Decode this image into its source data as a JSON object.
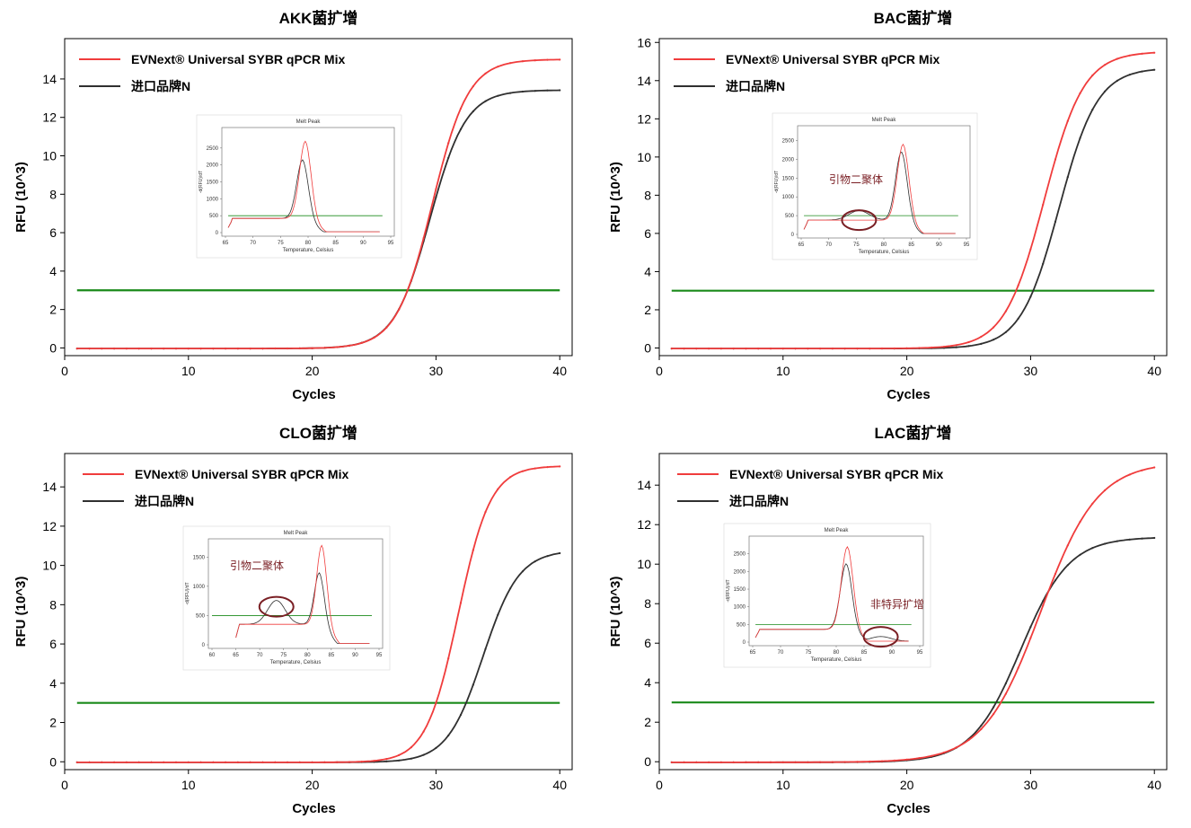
{
  "colors": {
    "evnext": "#f03c3c",
    "imported": "#303030",
    "threshold": "#1a8a1a",
    "annotation": "#7a1f24",
    "axis": "#000000"
  },
  "chart_data": [
    {
      "type": "line",
      "title": "AKK菌扩增",
      "xlabel": "Cycles",
      "ylabel": "RFU (10^3)",
      "xlim": [
        0,
        41
      ],
      "ylim": [
        -0.4,
        16.1
      ],
      "xticks": [
        0,
        10,
        20,
        30,
        40
      ],
      "yticks": [
        0,
        2,
        4,
        6,
        8,
        10,
        12,
        14
      ],
      "threshold": 3.0,
      "legend": [
        "EVNext® Universal SYBR qPCR Mix",
        "进口品牌N"
      ],
      "series": [
        {
          "name": "EVNext® Universal SYBR qPCR Mix",
          "plateau": 15.05,
          "midpoint": 29.7,
          "slope": 1.45,
          "baseline": 0.0
        },
        {
          "name": "进口品牌N",
          "plateau": 13.45,
          "midpoint": 29.5,
          "slope": 1.45,
          "baseline": 0.0
        }
      ],
      "inset": {
        "title": "Melt Peak",
        "xlabel": "Temperature, Celsius",
        "ylabel": "-d(RFU)/dT",
        "xticks": [
          65,
          70,
          75,
          80,
          85,
          90,
          95
        ],
        "yticks": [
          0,
          500,
          1000,
          1500,
          2000,
          2500
        ],
        "ylim": [
          0,
          3000
        ],
        "threshold": 500,
        "peaks": [
          {
            "series": "EVNext",
            "temp": 79.5,
            "height": 2700,
            "base": 420,
            "dimer_temp": null,
            "dimer_height": 0
          },
          {
            "series": "Imported",
            "temp": 79.0,
            "height": 2150,
            "base": 420,
            "dimer_temp": null,
            "dimer_height": 0
          }
        ],
        "annotation": null
      }
    },
    {
      "type": "line",
      "title": "BAC菌扩增",
      "xlabel": "Cycles",
      "ylabel": "RFU (10^3)",
      "xlim": [
        0,
        41
      ],
      "ylim": [
        -0.4,
        16.2
      ],
      "xticks": [
        0,
        10,
        20,
        30,
        40
      ],
      "yticks": [
        0,
        2,
        4,
        6,
        8,
        10,
        12,
        14,
        16
      ],
      "threshold": 3.0,
      "legend": [
        "EVNext® Universal SYBR qPCR Mix",
        "进口品牌N"
      ],
      "series": [
        {
          "name": "EVNext® Universal SYBR qPCR Mix",
          "plateau": 15.55,
          "midpoint": 31.1,
          "slope": 1.6,
          "baseline": 0.0
        },
        {
          "name": "进口品牌N",
          "plateau": 14.7,
          "midpoint": 32.3,
          "slope": 1.55,
          "baseline": 0.0
        }
      ],
      "inset": {
        "title": "Melt Peak",
        "xlabel": "Temperature, Celsius",
        "ylabel": "-d(RFU)/dT",
        "xticks": [
          65,
          70,
          75,
          80,
          85,
          90,
          95
        ],
        "yticks": [
          0,
          500,
          1000,
          1500,
          2000,
          2500
        ],
        "ylim": [
          0,
          2800
        ],
        "threshold": 500,
        "peaks": [
          {
            "series": "EVNext",
            "temp": 83.5,
            "height": 2400,
            "base": 380,
            "dimer_temp": null,
            "dimer_height": 0
          },
          {
            "series": "Imported",
            "temp": 83.2,
            "height": 2200,
            "base": 380,
            "dimer_temp": 75.5,
            "dimer_height": 420
          }
        ],
        "annotation": {
          "text": "引物二聚体",
          "circle_temp": 75.5,
          "circle_value": 380
        }
      }
    },
    {
      "type": "line",
      "title": "CLO菌扩增",
      "xlabel": "Cycles",
      "ylabel": "RFU (10^3)",
      "xlim": [
        0,
        41
      ],
      "ylim": [
        -0.4,
        15.7
      ],
      "xticks": [
        0,
        10,
        20,
        30,
        40
      ],
      "yticks": [
        0,
        2,
        4,
        6,
        8,
        10,
        12,
        14
      ],
      "threshold": 3.0,
      "legend": [
        "EVNext® Universal SYBR qPCR Mix",
        "进口品牌N"
      ],
      "series": [
        {
          "name": "EVNext® Universal SYBR qPCR Mix",
          "plateau": 15.1,
          "midpoint": 31.8,
          "slope": 1.3,
          "baseline": 0.0
        },
        {
          "name": "进口品牌N",
          "plateau": 10.8,
          "midpoint": 33.8,
          "slope": 1.45,
          "baseline": 0.0
        }
      ],
      "inset": {
        "title": "Melt Peak",
        "xlabel": "Temperature, Celsius",
        "ylabel": "-d(RFU)/dT",
        "xticks": [
          60,
          65,
          70,
          75,
          80,
          85,
          90,
          95
        ],
        "yticks": [
          0,
          500,
          1000,
          1500
        ],
        "ylim": [
          0,
          1750
        ],
        "threshold": 500,
        "peaks": [
          {
            "series": "EVNext",
            "temp": 83.0,
            "height": 1700,
            "base": 350,
            "dimer_temp": null,
            "dimer_height": 0
          },
          {
            "series": "Imported",
            "temp": 82.5,
            "height": 1230,
            "base": 350,
            "dimer_temp": 73.5,
            "dimer_height": 680
          }
        ],
        "annotation": {
          "text": "引物二聚体",
          "circle_temp": 73.5,
          "circle_value": 650
        }
      }
    },
    {
      "type": "line",
      "title": "LAC菌扩增",
      "xlabel": "Cycles",
      "ylabel": "RFU (10^3)",
      "xlim": [
        0,
        41
      ],
      "ylim": [
        -0.4,
        15.6
      ],
      "xticks": [
        0,
        10,
        20,
        30,
        40
      ],
      "yticks": [
        0,
        2,
        4,
        6,
        8,
        10,
        12,
        14
      ],
      "threshold": 3.0,
      "legend": [
        "EVNext® Universal SYBR qPCR Mix",
        "进口品牌N"
      ],
      "series": [
        {
          "name": "EVNext® Universal SYBR qPCR Mix",
          "plateau": 15.2,
          "midpoint": 30.8,
          "slope": 2.3,
          "baseline": 0.0
        },
        {
          "name": "进口品牌N",
          "plateau": 11.4,
          "midpoint": 29.2,
          "slope": 1.95,
          "baseline": 0.0
        }
      ],
      "inset": {
        "title": "Melt Peak",
        "xlabel": "Temperature, Celsius",
        "ylabel": "-d(RFU)/dT",
        "xticks": [
          65,
          70,
          75,
          80,
          85,
          90,
          95
        ],
        "yticks": [
          0,
          500,
          1000,
          1500,
          2000,
          2500
        ],
        "ylim": [
          0,
          2900
        ],
        "threshold": 500,
        "peaks": [
          {
            "series": "EVNext",
            "temp": 82.0,
            "height": 2700,
            "base": 360,
            "dimer_temp": null,
            "dimer_height": 0
          },
          {
            "series": "Imported",
            "temp": 81.8,
            "height": 2220,
            "base": 360,
            "dimer_temp": 88.0,
            "dimer_height": 220
          }
        ],
        "annotation": {
          "text": "非特异扩增",
          "circle_temp": 88.0,
          "circle_value": 150
        }
      }
    }
  ]
}
